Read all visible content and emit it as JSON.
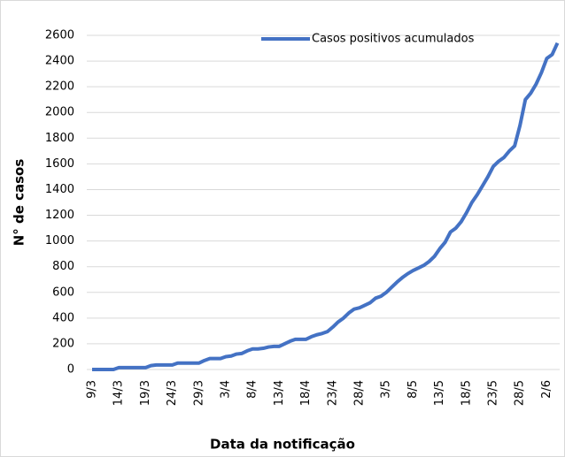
{
  "chart_data": {
    "type": "line",
    "xlabel": "Data da notificação",
    "ylabel": "N° de casos",
    "categories": [
      "9/3",
      null,
      null,
      null,
      null,
      "14/3",
      null,
      null,
      null,
      null,
      "19/3",
      null,
      null,
      null,
      null,
      "24/3",
      null,
      null,
      null,
      null,
      "29/3",
      null,
      null,
      null,
      null,
      "3/4",
      null,
      null,
      null,
      null,
      "8/4",
      null,
      null,
      null,
      null,
      "13/4",
      null,
      null,
      null,
      null,
      "18/4",
      null,
      null,
      null,
      null,
      "23/4",
      null,
      null,
      null,
      null,
      "28/4",
      null,
      null,
      null,
      null,
      "3/5",
      null,
      null,
      null,
      null,
      "8/5",
      null,
      null,
      null,
      null,
      "13/5",
      null,
      null,
      null,
      null,
      "18/5",
      null,
      null,
      null,
      null,
      "23/5",
      null,
      null,
      null,
      null,
      "28/5",
      null,
      null,
      null,
      null,
      "2/6",
      null,
      null
    ],
    "series": [
      {
        "name": "Casos positivos acumulados",
        "color": "#4472c4",
        "values": [
          0,
          0,
          0,
          0,
          0,
          15,
          15,
          15,
          15,
          15,
          15,
          30,
          35,
          35,
          35,
          35,
          50,
          50,
          50,
          50,
          50,
          70,
          85,
          85,
          85,
          100,
          105,
          120,
          125,
          145,
          160,
          160,
          165,
          175,
          180,
          180,
          200,
          220,
          235,
          235,
          235,
          255,
          270,
          280,
          295,
          330,
          370,
          400,
          440,
          470,
          480,
          500,
          520,
          555,
          570,
          600,
          640,
          680,
          715,
          745,
          770,
          790,
          810,
          840,
          880,
          940,
          990,
          1070,
          1100,
          1150,
          1220,
          1300,
          1360,
          1430,
          1500,
          1580,
          1620,
          1650,
          1700,
          1740,
          1900,
          2100,
          2150,
          2220,
          2310,
          2420,
          2450,
          2540
        ]
      }
    ],
    "ylim": [
      0,
      2600
    ],
    "yticks": [
      0,
      200,
      400,
      600,
      800,
      1000,
      1200,
      1400,
      1600,
      1800,
      2000,
      2200,
      2400,
      2600
    ],
    "grid": true,
    "legend": "top-right"
  }
}
